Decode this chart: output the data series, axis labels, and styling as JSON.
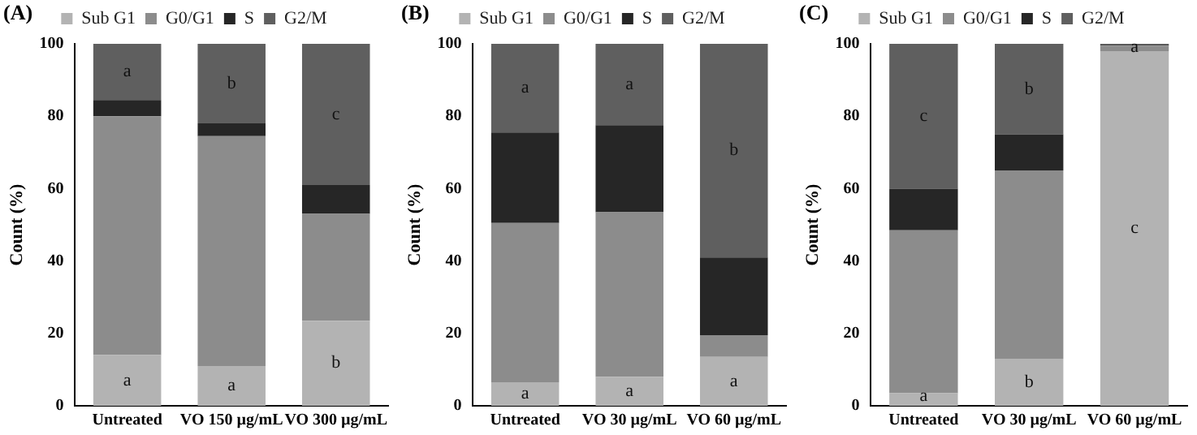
{
  "chart_data": [
    {
      "type": "bar",
      "title": "(A)",
      "ylabel": "Count (%)",
      "stacked": true,
      "legend": "top",
      "grid": false,
      "categories": [
        "Untreated",
        "VO 150 µg/mL",
        "VO 300 µg/mL"
      ],
      "ylim": [
        0,
        100
      ],
      "yticks": [
        0,
        20,
        40,
        60,
        80,
        100
      ],
      "series": [
        {
          "name": "Sub G1",
          "color": "#b3b3b3",
          "values": [
            14,
            11,
            23.5
          ],
          "value_labels": [
            "a",
            "a",
            "b"
          ]
        },
        {
          "name": "G0/G1",
          "color": "#8c8c8c",
          "values": [
            66,
            63.5,
            29.5
          ]
        },
        {
          "name": "S",
          "color": "#262626",
          "values": [
            4.5,
            3.5,
            8
          ]
        },
        {
          "name": "G2/M",
          "color": "#5f5f5f",
          "values": [
            15.5,
            22,
            39
          ],
          "value_labels": [
            "a",
            "b",
            "c"
          ]
        }
      ]
    },
    {
      "type": "bar",
      "title": "(B)",
      "ylabel": "Count (%)",
      "stacked": true,
      "legend": "top",
      "grid": false,
      "categories": [
        "Untreated",
        "VO 30 µg/mL",
        "VO 60 µg/mL"
      ],
      "ylim": [
        0,
        100
      ],
      "yticks": [
        0,
        20,
        40,
        60,
        80,
        100
      ],
      "series": [
        {
          "name": "Sub G1",
          "color": "#b3b3b3",
          "values": [
            6.5,
            8,
            13.5
          ],
          "value_labels": [
            "a",
            "a",
            "a"
          ]
        },
        {
          "name": "G0/G1",
          "color": "#8c8c8c",
          "values": [
            44,
            45.5,
            6
          ]
        },
        {
          "name": "S",
          "color": "#262626",
          "values": [
            25,
            24,
            21.5
          ]
        },
        {
          "name": "G2/M",
          "color": "#5f5f5f",
          "values": [
            24.5,
            22.5,
            59
          ],
          "value_labels": [
            "a",
            "a",
            "b"
          ]
        }
      ]
    },
    {
      "type": "bar",
      "title": "(C)",
      "ylabel": "Count (%)",
      "stacked": true,
      "legend": "top",
      "grid": false,
      "categories": [
        "Untreated",
        "VO 30 µg/mL",
        "VO 60 µg/mL"
      ],
      "ylim": [
        0,
        100
      ],
      "yticks": [
        0,
        20,
        40,
        60,
        80,
        100
      ],
      "series": [
        {
          "name": "Sub G1",
          "color": "#b3b3b3",
          "values": [
            3.5,
            13,
            98
          ],
          "value_labels": [
            "a",
            "b",
            "c"
          ]
        },
        {
          "name": "G0/G1",
          "color": "#8c8c8c",
          "values": [
            45,
            52,
            1.5
          ]
        },
        {
          "name": "S",
          "color": "#262626",
          "values": [
            11.5,
            10,
            0.2
          ]
        },
        {
          "name": "G2/M",
          "color": "#5f5f5f",
          "values": [
            40,
            25,
            0.3
          ],
          "value_labels": [
            "c",
            "b",
            "a"
          ]
        }
      ]
    }
  ]
}
